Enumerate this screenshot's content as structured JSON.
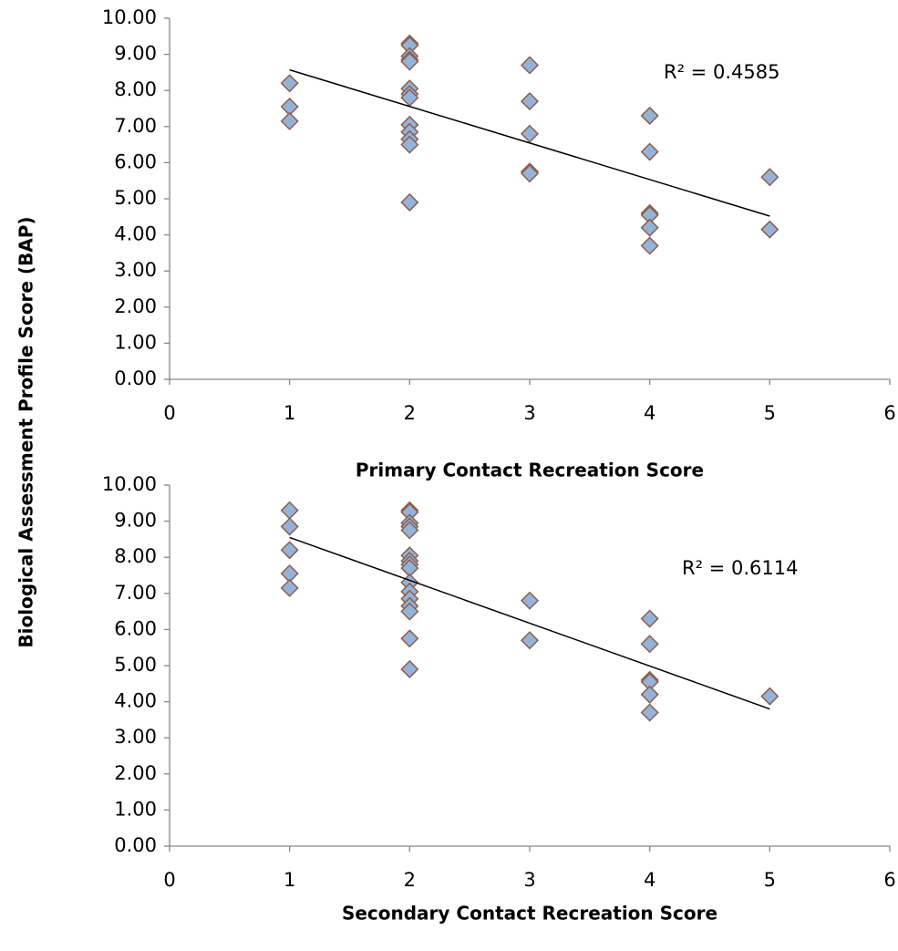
{
  "chart_data": [
    {
      "type": "scatter",
      "ylabel": "Biological Assessment Profile Score (BAP)",
      "xlabel": "Primary Contact Recreation Score",
      "annotation": "R² = 0.4585",
      "xlim": [
        0,
        6
      ],
      "xticks": [
        0,
        1,
        2,
        3,
        4,
        5,
        6
      ],
      "ylim": [
        0,
        10
      ],
      "yticks": [
        {
          "value": 0,
          "label": "0.00"
        },
        {
          "value": 1,
          "label": "1.00"
        },
        {
          "value": 2,
          "label": "2.00"
        },
        {
          "value": 3,
          "label": "3.00"
        },
        {
          "value": 4,
          "label": "4.00"
        },
        {
          "value": 5,
          "label": "5.00"
        },
        {
          "value": 6,
          "label": "6.00"
        },
        {
          "value": 7,
          "label": "7.00"
        },
        {
          "value": 8,
          "label": "8.00"
        },
        {
          "value": 9,
          "label": "9.00"
        },
        {
          "value": 10,
          "label": "10.00"
        }
      ],
      "color": "#95b3d7",
      "edge_color": "#8b5e4f",
      "x": [
        1,
        1,
        1,
        2,
        2,
        2,
        2,
        2,
        2,
        2,
        2,
        2,
        2,
        2,
        2,
        2,
        3,
        3,
        3,
        3,
        3,
        4,
        4,
        4,
        4,
        4,
        4,
        5,
        5
      ],
      "values": [
        8.2,
        7.55,
        7.15,
        9.3,
        9.25,
        8.95,
        8.85,
        8.8,
        8.05,
        7.9,
        7.8,
        7.05,
        6.85,
        6.65,
        6.5,
        4.9,
        8.7,
        7.7,
        6.8,
        5.75,
        5.7,
        7.3,
        6.3,
        4.6,
        4.55,
        4.2,
        3.7,
        5.6,
        4.15
      ],
      "trendline": {
        "x": [
          1,
          5
        ],
        "y": [
          8.57,
          4.52
        ]
      }
    },
    {
      "type": "scatter",
      "xlabel": "Secondary Contact Recreation Score",
      "annotation": "R² = 0.6114",
      "xlim": [
        0,
        6
      ],
      "xticks": [
        0,
        1,
        2,
        3,
        4,
        5,
        6
      ],
      "ylim": [
        0,
        10
      ],
      "yticks": [
        {
          "value": 0,
          "label": "0.00"
        },
        {
          "value": 1,
          "label": "1.00"
        },
        {
          "value": 2,
          "label": "2.00"
        },
        {
          "value": 3,
          "label": "3.00"
        },
        {
          "value": 4,
          "label": "4.00"
        },
        {
          "value": 5,
          "label": "5.00"
        },
        {
          "value": 6,
          "label": "6.00"
        },
        {
          "value": 7,
          "label": "7.00"
        },
        {
          "value": 8,
          "label": "8.00"
        },
        {
          "value": 9,
          "label": "9.00"
        },
        {
          "value": 10,
          "label": "10.00"
        }
      ],
      "color": "#95b3d7",
      "edge_color": "#8b5e4f",
      "x": [
        1,
        1,
        1,
        1,
        1,
        2,
        2,
        2,
        2,
        2,
        2,
        2,
        2,
        2,
        2,
        2,
        2,
        2,
        2,
        2,
        2,
        3,
        3,
        4,
        4,
        4,
        4,
        4,
        4,
        5
      ],
      "values": [
        9.3,
        8.85,
        8.2,
        7.55,
        7.15,
        9.3,
        9.25,
        8.95,
        8.85,
        8.75,
        8.05,
        7.9,
        7.8,
        7.7,
        7.3,
        7.05,
        6.85,
        6.65,
        6.5,
        5.75,
        4.9,
        6.8,
        5.7,
        6.3,
        5.6,
        4.6,
        4.55,
        4.2,
        3.7,
        4.15
      ],
      "trendline": {
        "x": [
          1,
          5
        ],
        "y": [
          8.55,
          3.8
        ]
      }
    }
  ]
}
